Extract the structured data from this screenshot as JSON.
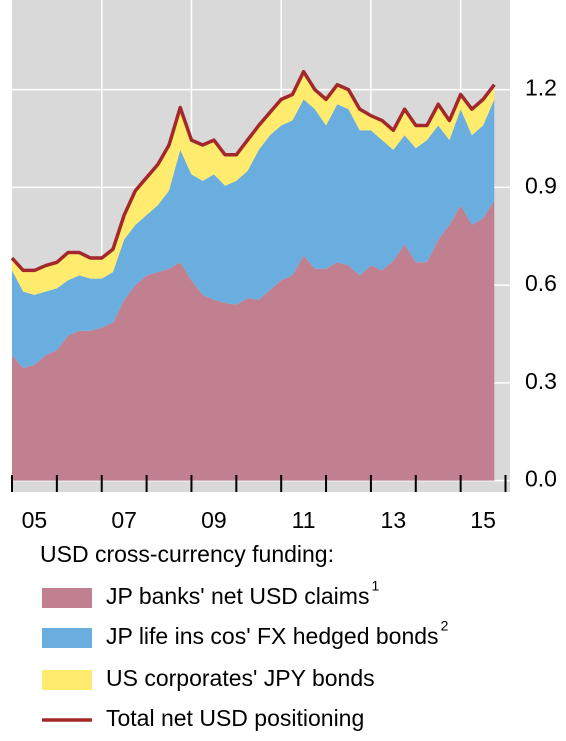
{
  "chart_data": {
    "type": "stacked-area",
    "x": [
      2005,
      2005.25,
      2005.5,
      2005.75,
      2006,
      2006.25,
      2006.5,
      2006.75,
      2007,
      2007.25,
      2007.5,
      2007.75,
      2008,
      2008.25,
      2008.5,
      2008.75,
      2009,
      2009.25,
      2009.5,
      2009.75,
      2010,
      2010.25,
      2010.5,
      2010.75,
      2011,
      2011.25,
      2011.5,
      2011.75,
      2012,
      2012.25,
      2012.5,
      2012.75,
      2013,
      2013.25,
      2013.5,
      2013.75,
      2014,
      2014.25,
      2014.5,
      2014.75,
      2015,
      2015.25,
      2015.5,
      2015.75
    ],
    "xlim": [
      2005,
      2016.1
    ],
    "xticks": [
      {
        "value": 2005,
        "label": "05"
      },
      {
        "value": 2006,
        "label": null
      },
      {
        "value": 2007,
        "label": "07"
      },
      {
        "value": 2008,
        "label": null
      },
      {
        "value": 2009,
        "label": "09"
      },
      {
        "value": 2010,
        "label": null
      },
      {
        "value": 2011,
        "label": "11"
      },
      {
        "value": 2012,
        "label": null
      },
      {
        "value": 2013,
        "label": "13"
      },
      {
        "value": 2014,
        "label": null
      },
      {
        "value": 2015,
        "label": "15"
      },
      {
        "value": 2016,
        "label": null
      }
    ],
    "ylim": [
      -0.035,
      1.475
    ],
    "yticks": [
      {
        "value": 0,
        "label": "0.0"
      },
      0.3,
      0.6,
      0.9,
      1.2
    ],
    "grid": true,
    "legend_title": "USD cross-currency funding:",
    "series": [
      {
        "name": "JP banks' net USD claims",
        "footnote": "1",
        "color": "#c0808f",
        "kind": "area",
        "values": [
          0.385,
          0.345,
          0.355,
          0.385,
          0.4,
          0.445,
          0.46,
          0.46,
          0.47,
          0.485,
          0.555,
          0.6,
          0.63,
          0.64,
          0.65,
          0.67,
          0.615,
          0.57,
          0.555,
          0.545,
          0.54,
          0.56,
          0.555,
          0.585,
          0.615,
          0.63,
          0.69,
          0.65,
          0.65,
          0.67,
          0.66,
          0.63,
          0.66,
          0.645,
          0.675,
          0.725,
          0.67,
          0.67,
          0.74,
          0.785,
          0.845,
          0.785,
          0.805,
          0.86
        ]
      },
      {
        "name": "JP life ins cos' FX hedged bonds",
        "footnote": "2",
        "color": "#6aaee0",
        "kind": "area",
        "values": [
          0.26,
          0.235,
          0.215,
          0.195,
          0.19,
          0.17,
          0.17,
          0.16,
          0.15,
          0.155,
          0.185,
          0.185,
          0.185,
          0.205,
          0.24,
          0.345,
          0.325,
          0.35,
          0.385,
          0.36,
          0.38,
          0.39,
          0.46,
          0.475,
          0.475,
          0.475,
          0.48,
          0.49,
          0.44,
          0.485,
          0.48,
          0.445,
          0.415,
          0.4,
          0.34,
          0.335,
          0.35,
          0.375,
          0.35,
          0.26,
          0.295,
          0.275,
          0.285,
          0.31
        ]
      },
      {
        "name": "US corporates' JPY bonds",
        "color": "#ffec6e",
        "kind": "area",
        "values": [
          0.038,
          0.065,
          0.075,
          0.08,
          0.08,
          0.085,
          0.07,
          0.063,
          0.063,
          0.07,
          0.075,
          0.105,
          0.115,
          0.125,
          0.14,
          0.13,
          0.105,
          0.11,
          0.105,
          0.095,
          0.08,
          0.095,
          0.075,
          0.07,
          0.08,
          0.08,
          0.085,
          0.06,
          0.08,
          0.06,
          0.06,
          0.065,
          0.045,
          0.06,
          0.06,
          0.08,
          0.07,
          0.045,
          0.065,
          0.06,
          0.045,
          0.08,
          0.08,
          0.045
        ]
      },
      {
        "name": "Total net USD positioning",
        "color": "#a3282c",
        "kind": "line",
        "values": [
          0.683,
          0.645,
          0.645,
          0.66,
          0.67,
          0.7,
          0.7,
          0.683,
          0.683,
          0.71,
          0.815,
          0.89,
          0.93,
          0.97,
          1.03,
          1.145,
          1.045,
          1.03,
          1.045,
          1.0,
          1.0,
          1.045,
          1.09,
          1.13,
          1.17,
          1.185,
          1.255,
          1.2,
          1.17,
          1.215,
          1.2,
          1.14,
          1.12,
          1.105,
          1.075,
          1.14,
          1.09,
          1.09,
          1.155,
          1.105,
          1.185,
          1.14,
          1.17,
          1.215
        ]
      }
    ]
  }
}
